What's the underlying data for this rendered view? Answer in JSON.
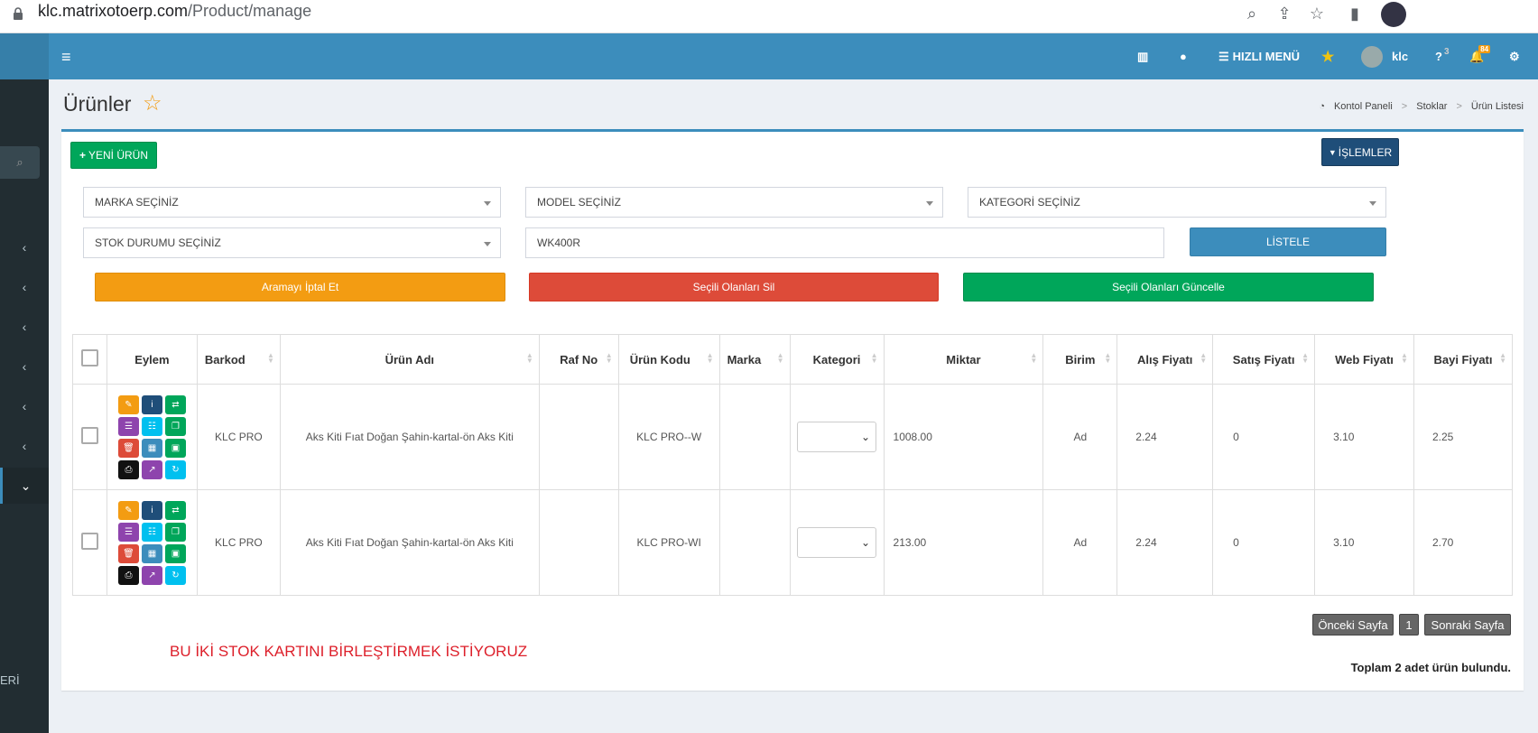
{
  "browser": {
    "url_domain": "klc.matrixotoerp.com",
    "url_path": "/Product/manage"
  },
  "topnav": {
    "quick_menu": "HIZLI MENÜ",
    "username": "klc",
    "help_badge": "3",
    "notif_badge": "84"
  },
  "sidebar": {
    "bottom_label": "ERİ"
  },
  "page": {
    "title": "Ürünler",
    "breadcrumb": [
      "Kontol Paneli",
      "Stoklar",
      "Ürün Listesi"
    ]
  },
  "toolbar": {
    "new_product": "YENİ ÜRÜN",
    "actions": "İŞLEMLER"
  },
  "filters": {
    "brand": "MARKA SEÇİNİZ",
    "model": "MODEL SEÇİNİZ",
    "category": "KATEGORİ SEÇİNİZ",
    "stock_status": "STOK DURUMU SEÇİNİZ",
    "search_value": "WK400R",
    "list_button": "LİSTELE"
  },
  "bulk": {
    "cancel_search": "Aramayı İptal Et",
    "delete_selected": "Seçili Olanları Sil",
    "update_selected": "Seçili Olanları Güncelle"
  },
  "table": {
    "headers": [
      "Eylem",
      "Barkod",
      "Ürün Adı",
      "Raf No",
      "Ürün Kodu",
      "Marka",
      "Kategori",
      "Miktar",
      "Birim",
      "Alış Fiyatı",
      "Satış Fiyatı",
      "Web Fiyatı",
      "Bayi Fiyatı"
    ],
    "rows": [
      {
        "barkod": "KLC PRO",
        "urun_adi": "Aks Kiti Fıat Doğan Şahin-kartal-ön Aks Kiti",
        "raf_no": "",
        "urun_kodu": "KLC PRO--W",
        "marka": "",
        "miktar": "1008.00",
        "birim": "Ad",
        "alis": "2.24",
        "satis": "0",
        "web": "3.10",
        "bayi": "2.25"
      },
      {
        "barkod": "KLC PRO",
        "urun_adi": "Aks Kiti Fıat Doğan Şahin-kartal-ön Aks Kiti",
        "raf_no": "",
        "urun_kodu": "KLC PRO-WI",
        "marka": "",
        "miktar": "213.00",
        "birim": "Ad",
        "alis": "2.24",
        "satis": "0",
        "web": "3.10",
        "bayi": "2.70"
      }
    ]
  },
  "pagination": {
    "prev": "Önceki Sayfa",
    "page": "1",
    "next": "Sonraki Sayfa"
  },
  "note": "BU İKİ STOK KARTINI BİRLEŞTİRMEK İSTİYORUZ",
  "total_text": "Toplam 2 adet ürün bulundu.",
  "colors": {
    "primary": "#3c8dbc",
    "success": "#00a65a",
    "danger": "#dd4b39",
    "warning": "#f39c12",
    "navy": "#1f4e79"
  }
}
